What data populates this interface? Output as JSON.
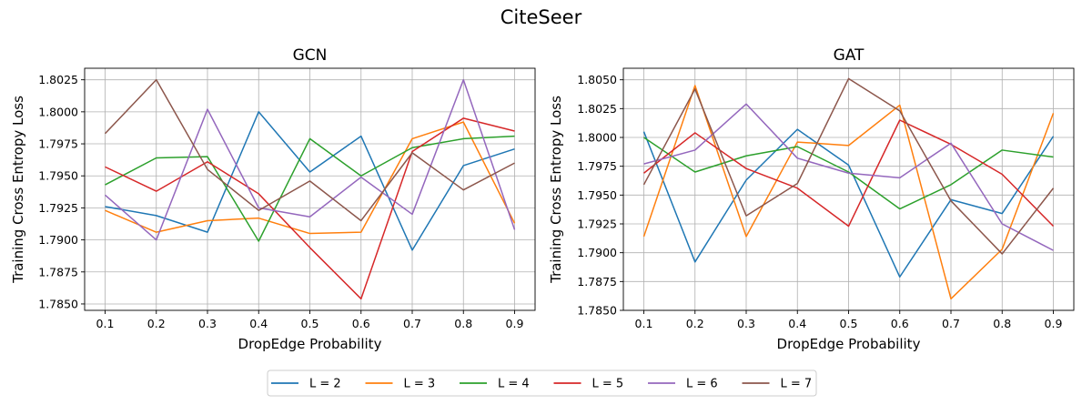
{
  "figure": {
    "suptitle": "CiteSeer"
  },
  "chart_data": [
    {
      "type": "line",
      "title": "GCN",
      "xlabel": "DropEdge Probability",
      "ylabel": "Training Cross Entropy Loss",
      "x": [
        0.1,
        0.2,
        0.3,
        0.4,
        0.5,
        0.6,
        0.7,
        0.8,
        0.9
      ],
      "x_ticks": [
        "0.1",
        "0.2",
        "0.3",
        "0.4",
        "0.5",
        "0.6",
        "0.7",
        "0.8",
        "0.9"
      ],
      "xlim": [
        0.06,
        0.94
      ],
      "ylim": [
        1.7845,
        1.8034
      ],
      "y_ticks": [
        "1.7850",
        "1.7875",
        "1.7900",
        "1.7925",
        "1.7950",
        "1.7975",
        "1.8000",
        "1.8025"
      ],
      "grid": true,
      "series": [
        {
          "name": "L = 2",
          "color": "#1f77b4",
          "values": [
            1.7926,
            1.7919,
            1.7906,
            1.8,
            1.7953,
            1.7981,
            1.7892,
            1.7958,
            1.7971
          ]
        },
        {
          "name": "L = 3",
          "color": "#ff7f0e",
          "values": [
            1.7923,
            1.7906,
            1.7915,
            1.7917,
            1.7905,
            1.7906,
            1.7979,
            1.7992,
            1.7913
          ]
        },
        {
          "name": "L = 4",
          "color": "#2ca02c",
          "values": [
            1.7943,
            1.7964,
            1.7965,
            1.7899,
            1.7979,
            1.795,
            1.7972,
            1.7979,
            1.7981
          ]
        },
        {
          "name": "L = 5",
          "color": "#d62728",
          "values": [
            1.7957,
            1.7938,
            1.7961,
            1.7936,
            1.7894,
            1.7854,
            1.7969,
            1.7995,
            1.7985
          ]
        },
        {
          "name": "L = 6",
          "color": "#9467bd",
          "values": [
            1.7935,
            1.79,
            1.8002,
            1.7925,
            1.7918,
            1.7949,
            1.792,
            1.8025,
            1.7908
          ]
        },
        {
          "name": "L = 7",
          "color": "#8c564b",
          "values": [
            1.7983,
            1.8025,
            1.7955,
            1.7923,
            1.7946,
            1.7915,
            1.7968,
            1.7939,
            1.796
          ]
        }
      ]
    },
    {
      "type": "line",
      "title": "GAT",
      "xlabel": "DropEdge Probability",
      "ylabel": "Training Cross Entropy Loss",
      "x": [
        0.1,
        0.2,
        0.3,
        0.4,
        0.5,
        0.6,
        0.7,
        0.8,
        0.9
      ],
      "x_ticks": [
        "0.1",
        "0.2",
        "0.3",
        "0.4",
        "0.5",
        "0.6",
        "0.7",
        "0.8",
        "0.9"
      ],
      "xlim": [
        0.06,
        0.94
      ],
      "ylim": [
        1.785,
        1.806
      ],
      "y_ticks": [
        "1.7850",
        "1.7875",
        "1.7900",
        "1.7925",
        "1.7950",
        "1.7975",
        "1.8000",
        "1.8025",
        "1.8050"
      ],
      "grid": true,
      "series": [
        {
          "name": "L = 2",
          "color": "#1f77b4",
          "values": [
            1.8005,
            1.7892,
            1.7963,
            1.8007,
            1.7976,
            1.7879,
            1.7946,
            1.7934,
            1.8001
          ]
        },
        {
          "name": "L = 3",
          "color": "#ff7f0e",
          "values": [
            1.7914,
            1.8045,
            1.7914,
            1.7996,
            1.7993,
            1.8028,
            1.786,
            1.7903,
            1.8021
          ]
        },
        {
          "name": "L = 4",
          "color": "#2ca02c",
          "values": [
            1.8,
            1.797,
            1.7984,
            1.7992,
            1.797,
            1.7938,
            1.7959,
            1.7989,
            1.7983
          ]
        },
        {
          "name": "L = 5",
          "color": "#d62728",
          "values": [
            1.7969,
            1.8004,
            1.7973,
            1.7956,
            1.7923,
            1.8015,
            1.7994,
            1.7968,
            1.7923
          ]
        },
        {
          "name": "L = 6",
          "color": "#9467bd",
          "values": [
            1.7977,
            1.7989,
            1.8029,
            1.7982,
            1.7969,
            1.7965,
            1.7995,
            1.7925,
            1.7902
          ]
        },
        {
          "name": "L = 7",
          "color": "#8c564b",
          "values": [
            1.7959,
            1.8042,
            1.7932,
            1.796,
            1.8051,
            1.8023,
            1.7945,
            1.7899,
            1.7956
          ]
        }
      ]
    }
  ],
  "legend": {
    "placement": "bottom-center",
    "entries": [
      "L = 2",
      "L = 3",
      "L = 4",
      "L = 5",
      "L = 6",
      "L = 7"
    ]
  }
}
